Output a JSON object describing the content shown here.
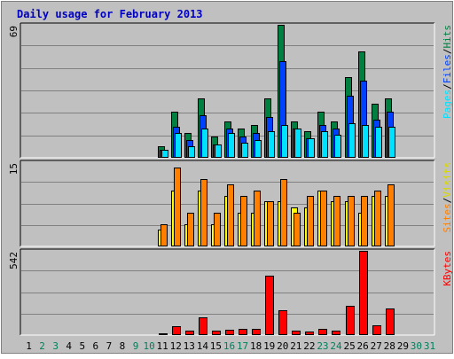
{
  "title": "Daily usage for February 2013",
  "colors": {
    "title": "#0000c0",
    "hits": "#008040",
    "files": "#0040ff",
    "pages": "#00e0ff",
    "visits": "#ffff00",
    "sites": "#ff8000",
    "kbytes": "#ff0000",
    "weekday": "#000000",
    "weekend": "#00805c",
    "panel": "#c0c0c0",
    "grid": "#808080"
  },
  "chart_data": {
    "type": "bar",
    "categories": [
      "1",
      "2",
      "3",
      "4",
      "5",
      "6",
      "7",
      "8",
      "9",
      "10",
      "11",
      "12",
      "13",
      "14",
      "15",
      "16",
      "17",
      "18",
      "19",
      "20",
      "21",
      "22",
      "23",
      "24",
      "25",
      "26",
      "27",
      "28",
      "29",
      "30",
      "31"
    ],
    "weekend_days": [
      2,
      3,
      9,
      10,
      16,
      17,
      23,
      24,
      30,
      31
    ],
    "panels": [
      {
        "id": "hits_files_pages",
        "ymax": 69,
        "ymax_label": "69",
        "side_label": [
          "Pages",
          "Files",
          "Hits"
        ],
        "series": [
          {
            "name": "Hits",
            "values": [
              0,
              0,
              0,
              0,
              0,
              0,
              0,
              0,
              0,
              0,
              6,
              24,
              13,
              31,
              11,
              19,
              15,
              17,
              31,
              69,
              19,
              14,
              24,
              19,
              42,
              55,
              28,
              31,
              0,
              0,
              0
            ]
          },
          {
            "name": "Files",
            "values": [
              0,
              0,
              0,
              0,
              0,
              0,
              0,
              0,
              0,
              0,
              4,
              16,
              9,
              22,
              7,
              15,
              11,
              13,
              21,
              50,
              15,
              10,
              17,
              15,
              32,
              40,
              20,
              24,
              0,
              0,
              0
            ]
          },
          {
            "name": "Pages",
            "values": [
              0,
              0,
              0,
              0,
              0,
              0,
              0,
              0,
              0,
              0,
              4,
              13,
              6,
              15,
              7,
              13,
              8,
              9,
              14,
              17,
              15,
              10,
              14,
              12,
              18,
              17,
              16,
              16,
              0,
              0,
              0
            ]
          }
        ]
      },
      {
        "id": "visits_sites",
        "ymax": 15,
        "ymax_label": "15",
        "side_label": [
          "Sites",
          "Visits"
        ],
        "series": [
          {
            "name": "Visits",
            "values": [
              0,
              0,
              0,
              0,
              0,
              0,
              0,
              0,
              0,
              0,
              3,
              10,
              4,
              10,
              4,
              9,
              6,
              6,
              8,
              8,
              7,
              7,
              10,
              8,
              8,
              6,
              9,
              9,
              0,
              0,
              0
            ]
          },
          {
            "name": "Sites",
            "values": [
              0,
              0,
              0,
              0,
              0,
              0,
              0,
              0,
              0,
              0,
              4,
              14,
              6,
              12,
              6,
              11,
              9,
              10,
              8,
              12,
              6,
              9,
              10,
              9,
              9,
              9,
              10,
              11,
              0,
              0,
              0
            ]
          }
        ]
      },
      {
        "id": "kbytes",
        "ymax": 542,
        "ymax_label": "542",
        "side_label": [
          "KBytes"
        ],
        "series": [
          {
            "name": "KBytes",
            "values": [
              0,
              0,
              0,
              0,
              0,
              0,
              0,
              0,
              0,
              0,
              10,
              55,
              30,
              115,
              30,
              35,
              40,
              40,
              380,
              160,
              30,
              25,
              40,
              30,
              190,
              542,
              65,
              170,
              0,
              0,
              0
            ]
          }
        ]
      }
    ]
  }
}
